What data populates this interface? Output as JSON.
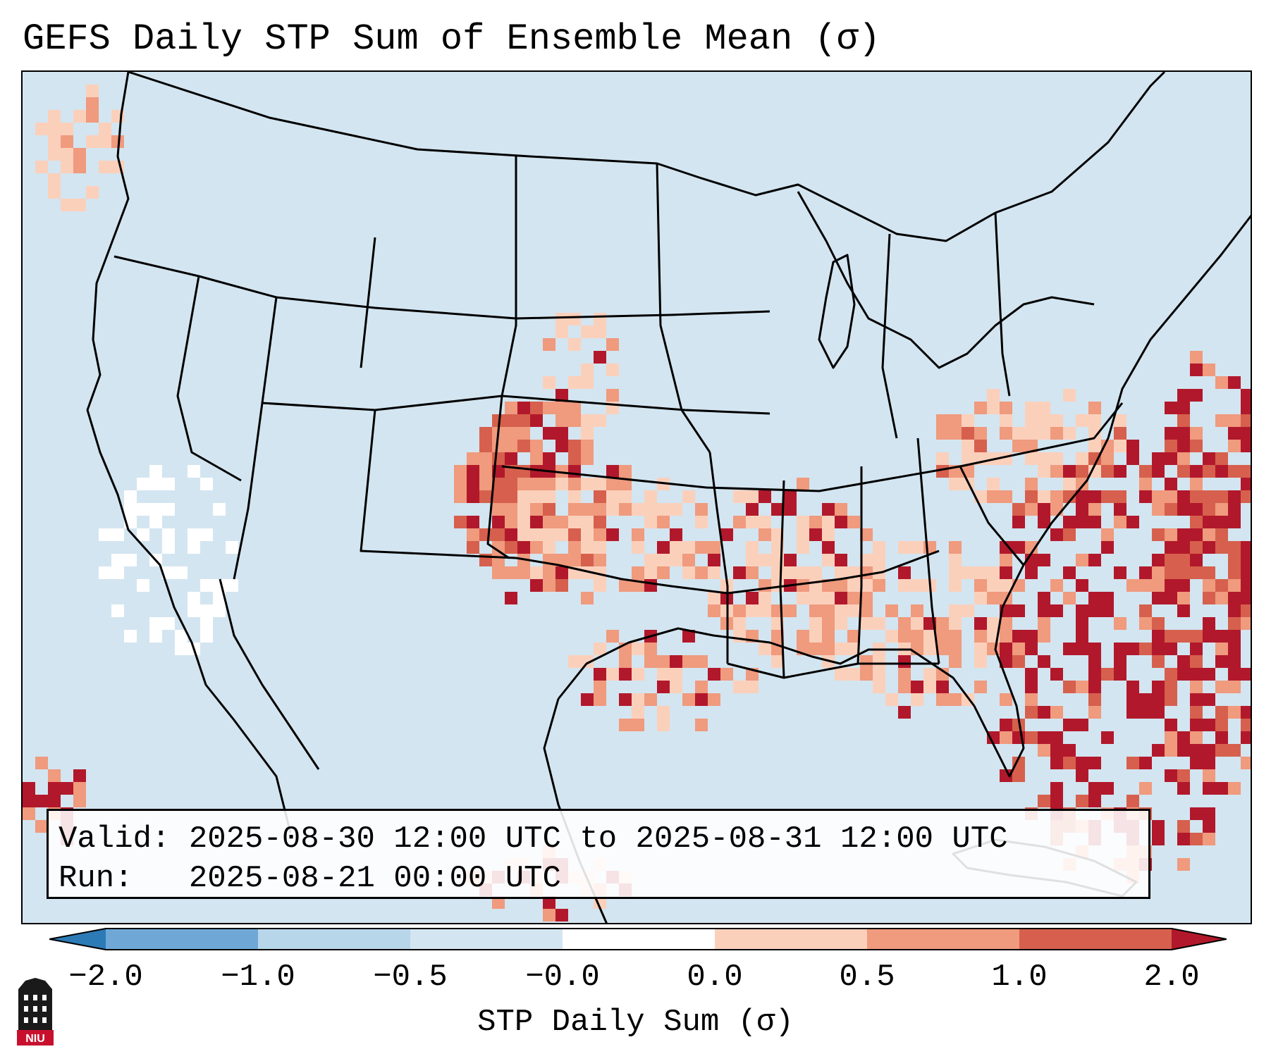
{
  "title": "GEFS Daily STP Sum of Ensemble Mean (σ)",
  "info": {
    "valid_label": "Valid:",
    "valid_text": "2025-08-30 12:00 UTC to 2025-08-31 12:00 UTC",
    "run_label": "Run:",
    "run_text": "2025-08-21 00:00 UTC"
  },
  "colorbar": {
    "label": "STP Daily Sum (σ)",
    "ticks": [
      "−2.0",
      "−1.0",
      "−0.5",
      "−0.0",
      "0.0",
      "0.5",
      "1.0",
      "2.0"
    ],
    "colors": [
      "#2c7bb6",
      "#6fa8d6",
      "#b7d6ea",
      "#d3e5f0",
      "#ffffff",
      "#fbd0bb",
      "#f09a7e",
      "#d6604d",
      "#b2182b"
    ]
  },
  "logo": {
    "text": "NIU",
    "colors": {
      "red": "#c8102e",
      "black": "#1a1a1a"
    }
  },
  "map": {
    "background_value": "-0.0",
    "regions": [
      {
        "name": "Gulf Stream / Western Atlantic",
        "category": "above 2.0"
      },
      {
        "name": "Florida and Bahamas",
        "category": "above 2.0"
      },
      {
        "name": "Texas Panhandle / Eastern New Mexico",
        "category": "1.0 to 2.0"
      },
      {
        "name": "Kansas / Oklahoma",
        "category": "0.5 to 2.0"
      },
      {
        "name": "Southeast US",
        "category": "0.0 to 1.0"
      },
      {
        "name": "Great Basin",
        "category": "0.0 to -0.5 (white)"
      }
    ]
  }
}
